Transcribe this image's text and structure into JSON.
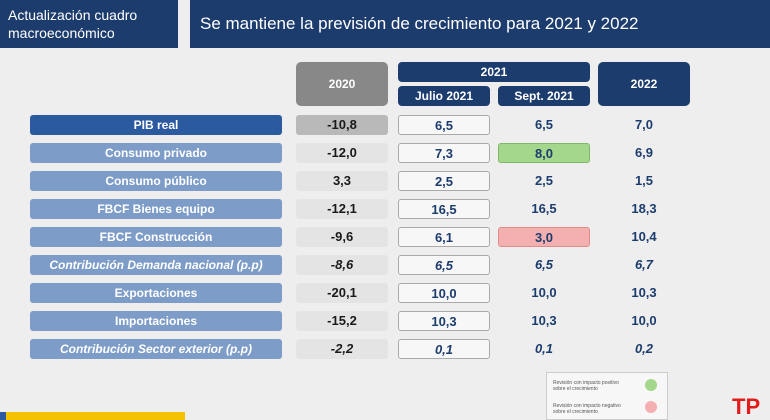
{
  "header": {
    "section_title_line1": "Actualización cuadro",
    "section_title_line2": "macroeconómico",
    "slide_title": "Se mantiene la previsión de crecimiento para 2021 y 2022"
  },
  "columns": {
    "y2020": "2020",
    "y2021": "2021",
    "julio": "Julio 2021",
    "sept": "Sept. 2021",
    "y2022": "2022"
  },
  "rows": [
    {
      "label": "PIB real",
      "v2020": "-10,8",
      "jul": "6,5",
      "sep": "6,5",
      "v2022": "7,0"
    },
    {
      "label": "Consumo privado",
      "v2020": "-12,0",
      "jul": "7,3",
      "sep": "8,0",
      "v2022": "6,9"
    },
    {
      "label": "Consumo público",
      "v2020": "3,3",
      "jul": "2,5",
      "sep": "2,5",
      "v2022": "1,5"
    },
    {
      "label": "FBCF Bienes equipo",
      "v2020": "-12,1",
      "jul": "16,5",
      "sep": "16,5",
      "v2022": "18,3"
    },
    {
      "label": "FBCF Construcción",
      "v2020": "-9,6",
      "jul": "6,1",
      "sep": "3,0",
      "v2022": "10,4"
    },
    {
      "label": "Contribución Demanda nacional (p.p)",
      "v2020": "-8,6",
      "jul": "6,5",
      "sep": "6,5",
      "v2022": "6,7"
    },
    {
      "label": "Exportaciones",
      "v2020": "-20,1",
      "jul": "10,0",
      "sep": "10,0",
      "v2022": "10,3"
    },
    {
      "label": "Importaciones",
      "v2020": "-15,2",
      "jul": "10,3",
      "sep": "10,3",
      "v2022": "10,0"
    },
    {
      "label": "Contribución Sector exterior (p.p)",
      "v2020": "-2,2",
      "jul": "0,1",
      "sep": "0,1",
      "v2022": "0,2"
    }
  ],
  "legend": {
    "positive_line1": "Revisión con impacto positivo",
    "positive_line2": "sobre el crecimiento",
    "negative_line1": "Revisión con impacto negativo",
    "negative_line2": "sobre el crecimiento",
    "positive_color": "#a4d68c",
    "negative_color": "#f4b0b0"
  },
  "logo_text": "TP"
}
